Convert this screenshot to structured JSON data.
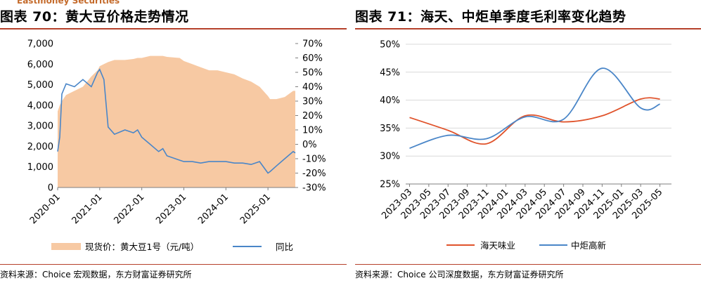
{
  "brand_text": "Eastmoney Securities",
  "colors": {
    "rule": "#b5402a",
    "area_fill": "#f7c9a3",
    "line_blue": "#4a86c8",
    "line_orange": "#e0532b",
    "grid": "#d9d9d9"
  },
  "left": {
    "figure_title": "图表 70：黄大豆价格走势情况",
    "source": "资料来源：Choice 宏观数据，东方财富证券研究所",
    "legend": {
      "area": "现货价：黄大豆1号（元/吨）",
      "line": "同比"
    }
  },
  "right": {
    "figure_title": "图表 71：海天、中炬单季度毛利率变化趋势",
    "source": "资料来源：Choice 公司深度数据，东方财富证券研究所",
    "legend": {
      "s1": "海天味业",
      "s2": "中炬高新"
    }
  },
  "chart_data": [
    {
      "type": "area",
      "title": "黄大豆价格走势情况",
      "x": [
        2020.0,
        2020.05,
        2020.1,
        2020.2,
        2020.4,
        2020.6,
        2020.8,
        2020.95,
        2021.0,
        2021.1,
        2021.2,
        2021.35,
        2021.6,
        2021.8,
        2021.9,
        2022.0,
        2022.2,
        2022.4,
        2022.5,
        2022.6,
        2022.9,
        2023.0,
        2023.2,
        2023.4,
        2023.6,
        2023.8,
        2024.0,
        2024.2,
        2024.4,
        2024.6,
        2024.8,
        2025.0,
        2025.05,
        2025.2,
        2025.4,
        2025.6,
        2025.65
      ],
      "series": [
        {
          "name": "现货价：黄大豆1号（元/吨）",
          "axis": "left",
          "values": [
            3700,
            4000,
            4200,
            4500,
            4700,
            4900,
            5400,
            5700,
            5900,
            6000,
            6100,
            6200,
            6200,
            6250,
            6300,
            6300,
            6400,
            6400,
            6400,
            6350,
            6300,
            6150,
            6000,
            5850,
            5700,
            5700,
            5600,
            5500,
            5300,
            5150,
            4900,
            4450,
            4300,
            4300,
            4400,
            4700,
            4700
          ]
        },
        {
          "name": "同比",
          "axis": "right",
          "values": [
            -5,
            5,
            35,
            42,
            40,
            45,
            40,
            50,
            52,
            45,
            12,
            7,
            10,
            8,
            10,
            5,
            0,
            -5,
            -3,
            -8,
            -11,
            -12,
            -12,
            -13,
            -12,
            -12,
            -12,
            -13,
            -13,
            -14,
            -12,
            -20,
            -19,
            -15,
            -10,
            -5,
            -6
          ]
        }
      ],
      "y_left": {
        "range": [
          0,
          7000
        ],
        "ticks": [
          "0",
          "1,000",
          "2,000",
          "3,000",
          "4,000",
          "5,000",
          "6,000",
          "7,000"
        ]
      },
      "y_right": {
        "range": [
          -30,
          70
        ],
        "ticks": [
          "-30%",
          "-20%",
          "-10%",
          "0%",
          "10%",
          "20%",
          "30%",
          "40%",
          "50%",
          "60%",
          "70%"
        ]
      },
      "x_ticks": [
        "2020-01",
        "2021-01",
        "2022-01",
        "2023-01",
        "2024-01",
        "2025-01"
      ]
    },
    {
      "type": "line",
      "title": "海天、中炬单季度毛利率变化趋势",
      "categories": [
        "2023-03",
        "2023-05",
        "2023-07",
        "2023-09",
        "2023-11",
        "2024-01",
        "2024-03",
        "2024-05",
        "2024-07",
        "2024-09",
        "2024-11",
        "2025-01",
        "2025-03",
        "2025-05"
      ],
      "x_numeric": [
        0,
        0.5,
        1,
        1.5,
        2,
        2.5,
        3,
        3.5,
        4,
        4.5,
        5,
        5.5,
        6,
        6.5
      ],
      "series": [
        {
          "name": "海天味业",
          "x": [
            0,
            1,
            2,
            3,
            4,
            5,
            6,
            6.5
          ],
          "values": [
            36.9,
            34.6,
            32.2,
            37.2,
            36.1,
            37.2,
            40.2,
            40.2
          ]
        },
        {
          "name": "中炬高新",
          "x": [
            0,
            1,
            2,
            3,
            4,
            5,
            6,
            6.5
          ],
          "values": [
            31.4,
            33.7,
            33.1,
            37.0,
            36.6,
            45.7,
            38.6,
            39.3
          ]
        }
      ],
      "ylim": [
        25,
        50
      ],
      "y_ticks": [
        "25%",
        "30%",
        "35%",
        "40%",
        "45%",
        "50%"
      ]
    }
  ]
}
